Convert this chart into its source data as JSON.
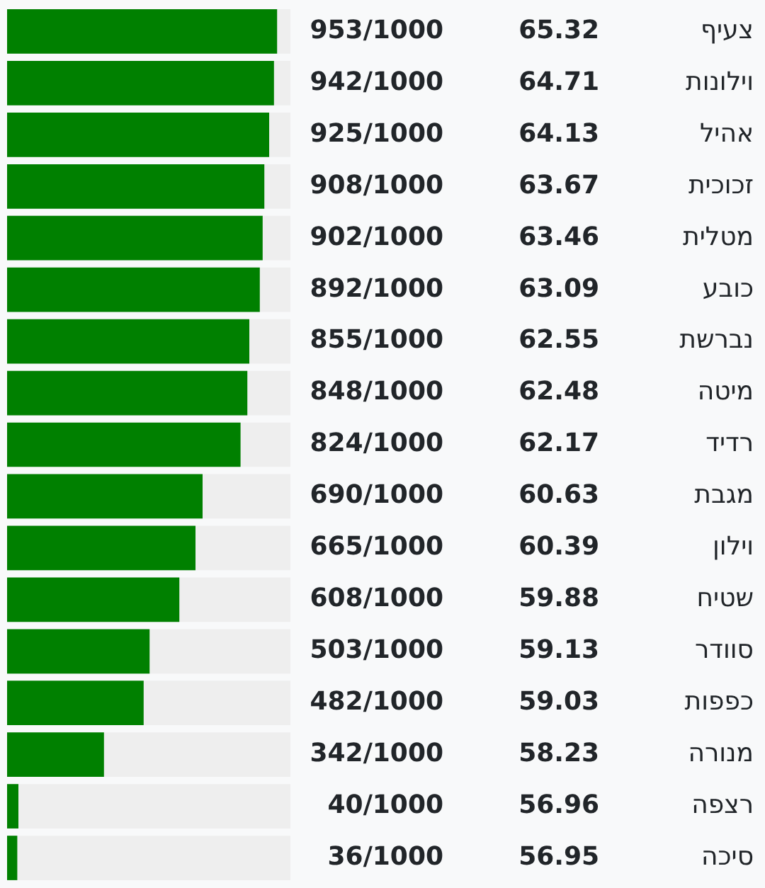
{
  "chart_data": {
    "type": "bar",
    "orientation": "horizontal",
    "tick_labels": "y",
    "color": "#008000",
    "categories": [
      "צעיף",
      "וילונות",
      "אהיל",
      "זכוכית",
      "מטלית",
      "כובע",
      "נברשת",
      "מיטה",
      "רדיד",
      "מגבת",
      "וילון",
      "שטיח",
      "סוודר",
      "כפפות",
      "מנורה",
      "רצפה",
      "סיכה"
    ],
    "values": [
      953,
      942,
      925,
      908,
      902,
      892,
      855,
      848,
      824,
      690,
      665,
      608,
      503,
      482,
      342,
      40,
      36
    ],
    "value_labels": [
      "953/1000",
      "942/1000",
      "925/1000",
      "908/1000",
      "902/1000",
      "892/1000",
      "855/1000",
      "848/1000",
      "824/1000",
      "690/1000",
      "665/1000",
      "608/1000",
      "503/1000",
      "482/1000",
      "342/1000",
      "40/1000",
      "36/1000"
    ],
    "xlim": [
      0,
      1000
    ],
    "annotations": [
      "65.32",
      "64.71",
      "64.13",
      "63.67",
      "63.46",
      "63.09",
      "62.55",
      "62.48",
      "62.17",
      "60.63",
      "60.39",
      "59.88",
      "59.13",
      "59.03",
      "58.23",
      "56.96",
      "56.95"
    ]
  }
}
